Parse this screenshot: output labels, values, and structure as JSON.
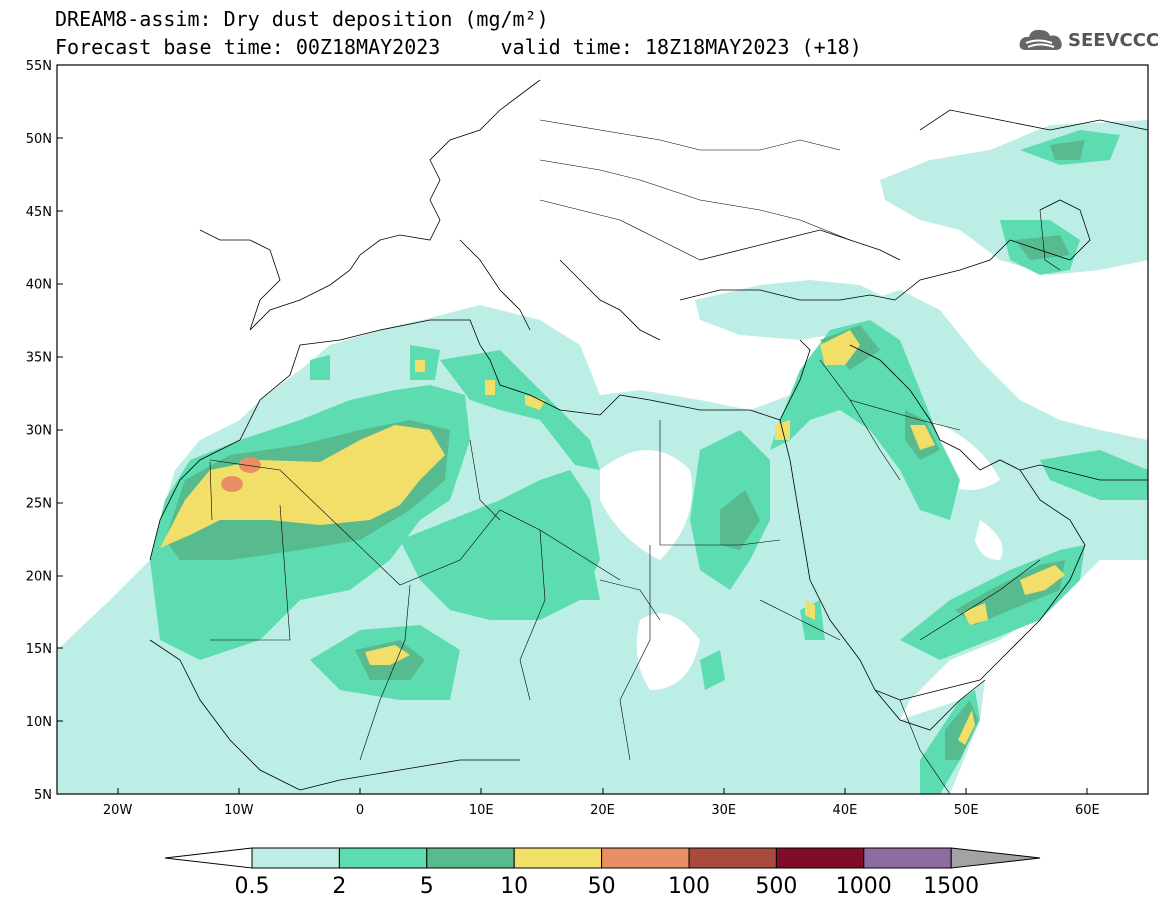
{
  "title": {
    "line1": "DREAM8-assim: Dry dust deposition (mg/m²)",
    "line2": "Forecast base time: 00Z18MAY2023     valid time: 18Z18MAY2023 (+18)"
  },
  "logo": {
    "text": "SEEVCCC",
    "icon": "cloud-logo-icon"
  },
  "map": {
    "lon_range": [
      -25,
      65
    ],
    "lat_range": [
      5,
      55
    ],
    "lat_ticks": [
      "55N",
      "50N",
      "45N",
      "40N",
      "35N",
      "30N",
      "25N",
      "20N",
      "15N",
      "10N",
      "5N"
    ],
    "lon_ticks": [
      "20W",
      "10W",
      "0",
      "10E",
      "20E",
      "30E",
      "40E",
      "50E",
      "60E"
    ]
  },
  "legend": {
    "labels": [
      "0.5",
      "2",
      "5",
      "10",
      "50",
      "100",
      "500",
      "1000",
      "1500"
    ],
    "colors": [
      "#bdeee6",
      "#5cdcb0",
      "#57bb8f",
      "#f1df69",
      "#ea8f65",
      "#a84b3e",
      "#800c2a",
      "#8d6ca1",
      "#a3a3a3"
    ]
  }
}
